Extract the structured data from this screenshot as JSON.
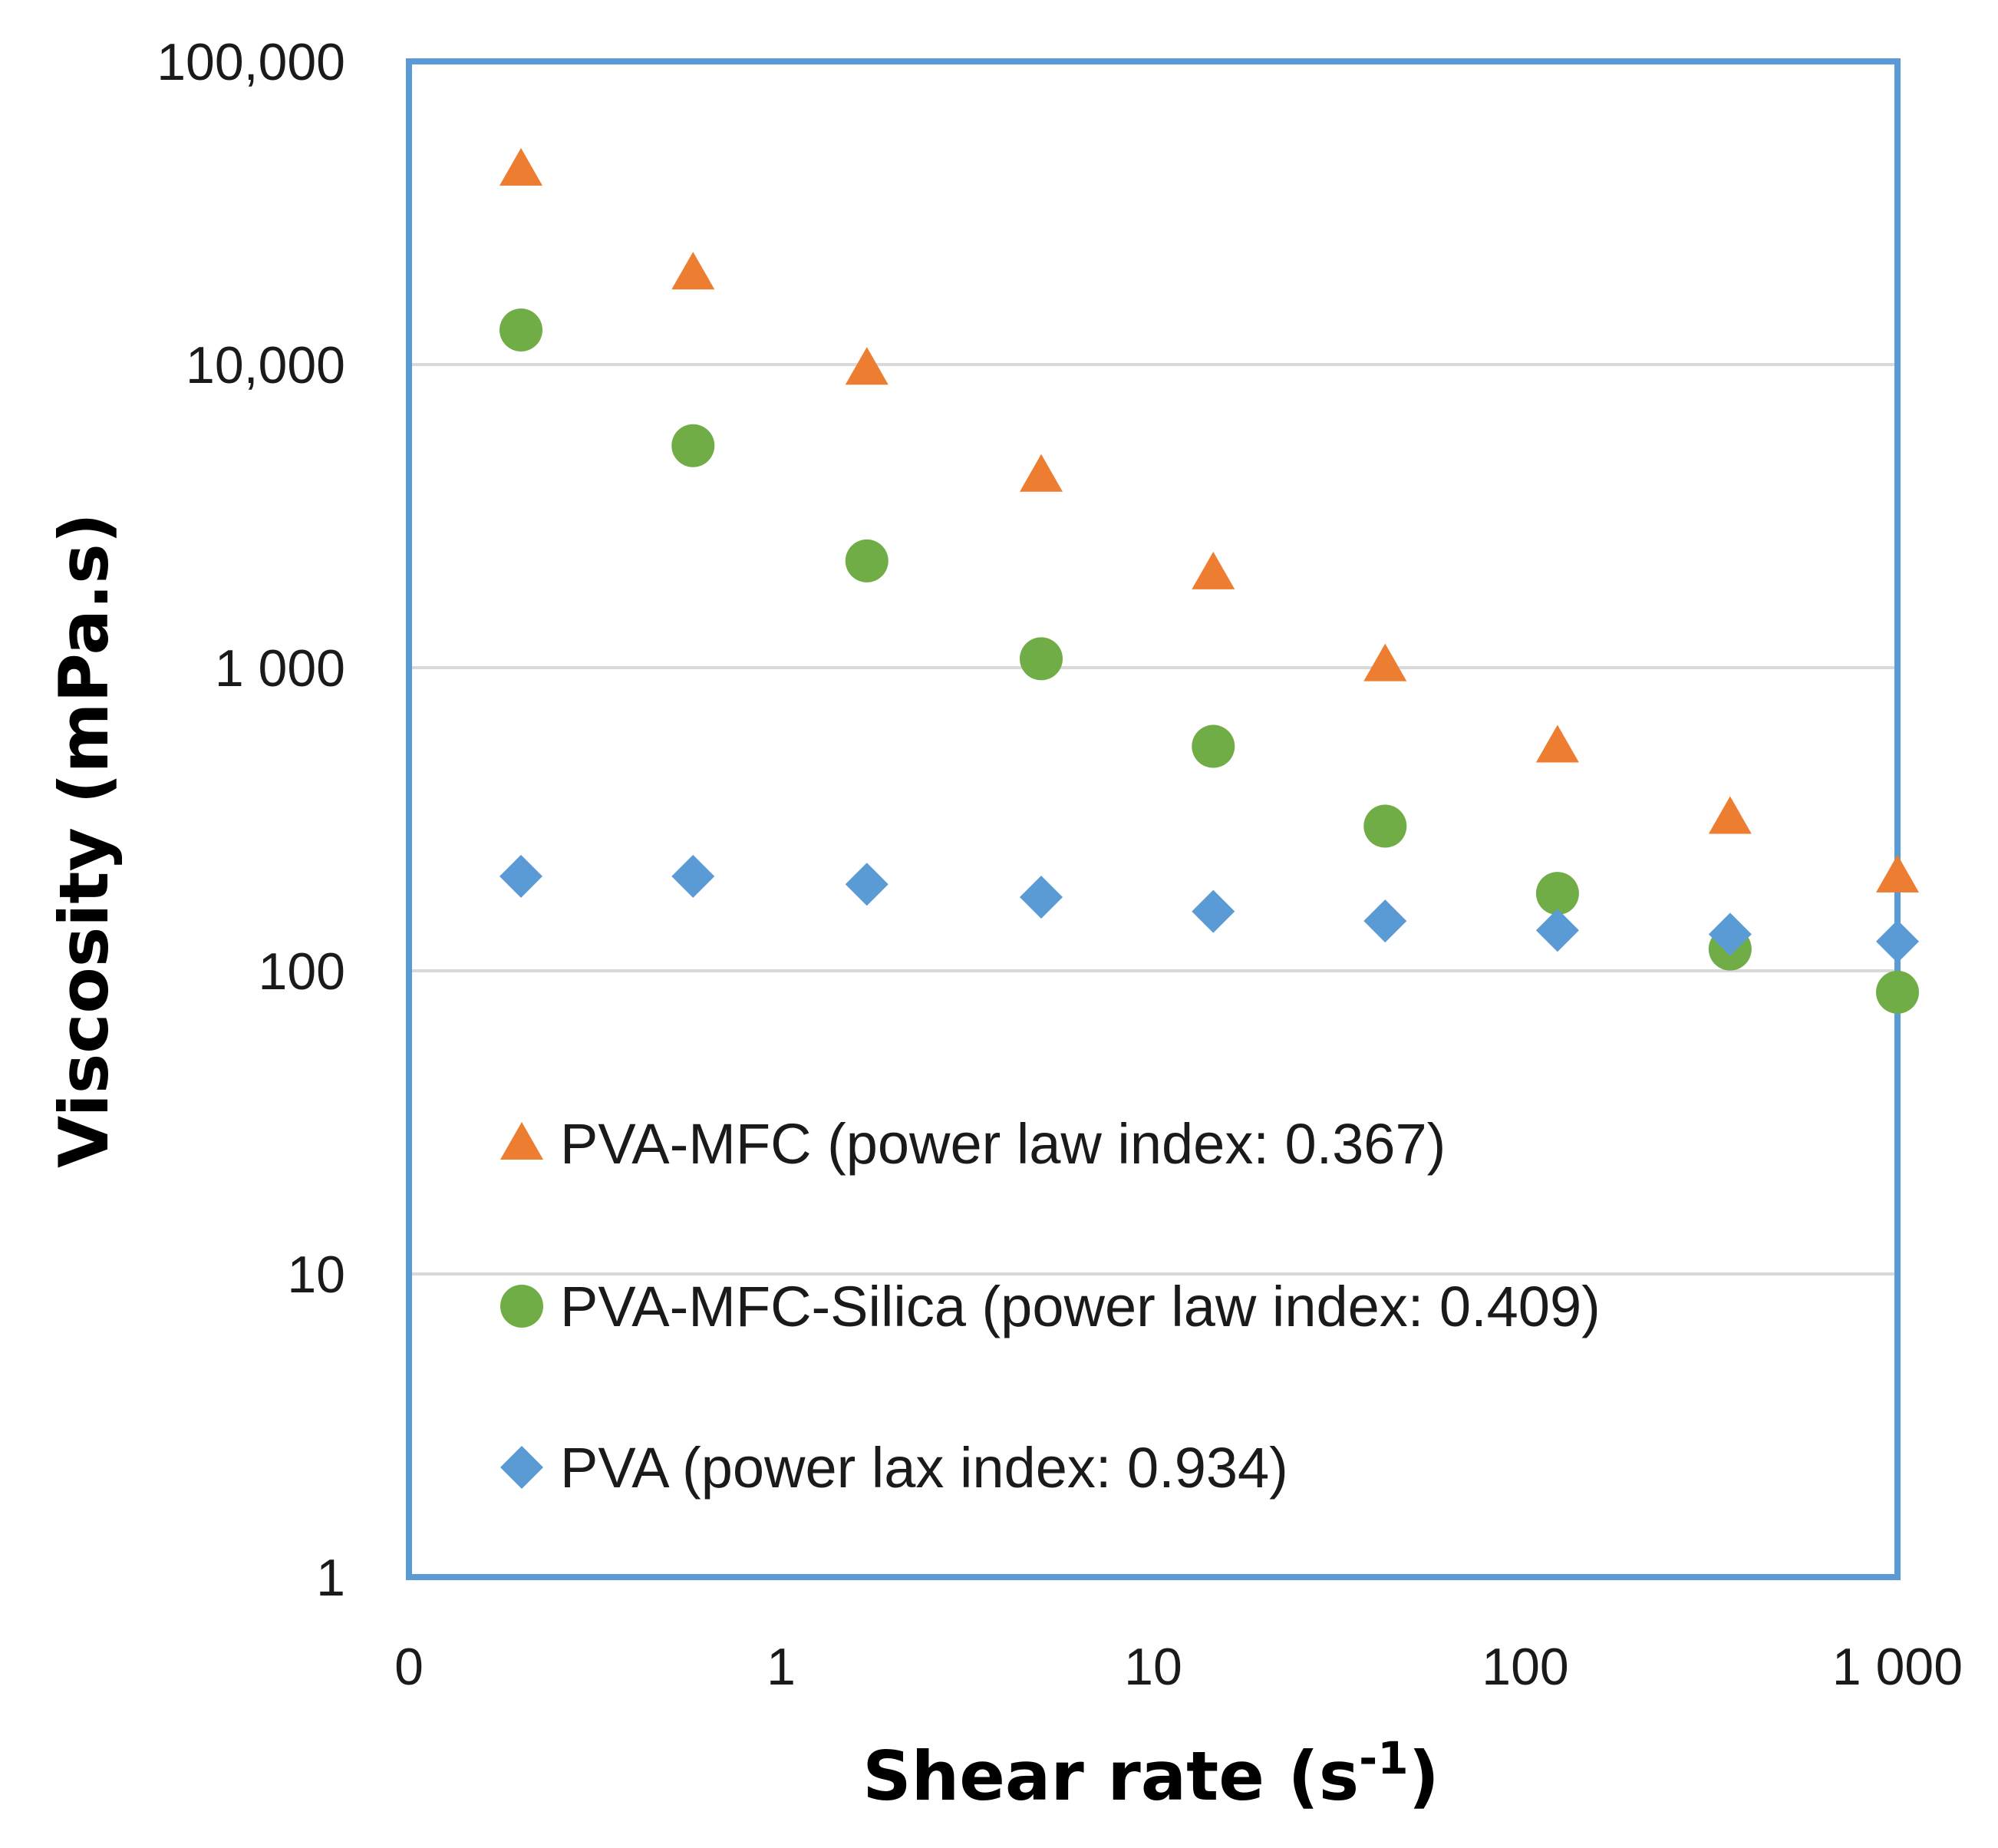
{
  "colors": {
    "frame": "#5b9bd5",
    "grid": "#d9d9d9",
    "pva_mfc": "#ed7d31",
    "pva_mfc_silica": "#70ad47",
    "pva": "#5b9bd5"
  },
  "chart_data": {
    "type": "scatter",
    "title": "",
    "xlabel": "Shear rate (s",
    "xlabel_superscript": "-1",
    "xlabel_close": ")",
    "ylabel": "Viscosity (mPa.s)",
    "xscale": "log",
    "yscale": "log",
    "xlim": [
      0.1,
      1000
    ],
    "ylim": [
      1,
      100000
    ],
    "grid": "horizontal",
    "x_tick_values": [
      0.1,
      1,
      10,
      100,
      1000
    ],
    "x_tick_labels": [
      "0",
      "1",
      "10",
      "100",
      "1 000"
    ],
    "y_tick_values": [
      1,
      10,
      100,
      1000,
      10000,
      100000
    ],
    "y_tick_labels": [
      "1",
      "10",
      "100",
      "1 000",
      "10,000",
      "100,000"
    ],
    "legend_position": "bottom-left inside",
    "x": [
      0.2,
      0.58,
      1.7,
      5,
      14.5,
      42,
      122,
      355,
      1000
    ],
    "series": [
      {
        "name": "PVA-MFC (power law index: 0.367)",
        "marker": "triangle",
        "color": "#ed7d31",
        "values": [
          44000,
          20000,
          9700,
          4300,
          2050,
          1020,
          550,
          320,
          205
        ]
      },
      {
        "name": "PVA-MFC-Silica (power law index: 0.409)",
        "marker": "circle",
        "color": "#70ad47",
        "values": [
          13000,
          5400,
          2250,
          1070,
          550,
          300,
          180,
          118,
          85
        ]
      },
      {
        "name": "PVA (power lax index: 0.934)",
        "marker": "diamond",
        "color": "#5b9bd5",
        "values": [
          205,
          205,
          193,
          175,
          157,
          146,
          136,
          132,
          125
        ]
      }
    ]
  }
}
